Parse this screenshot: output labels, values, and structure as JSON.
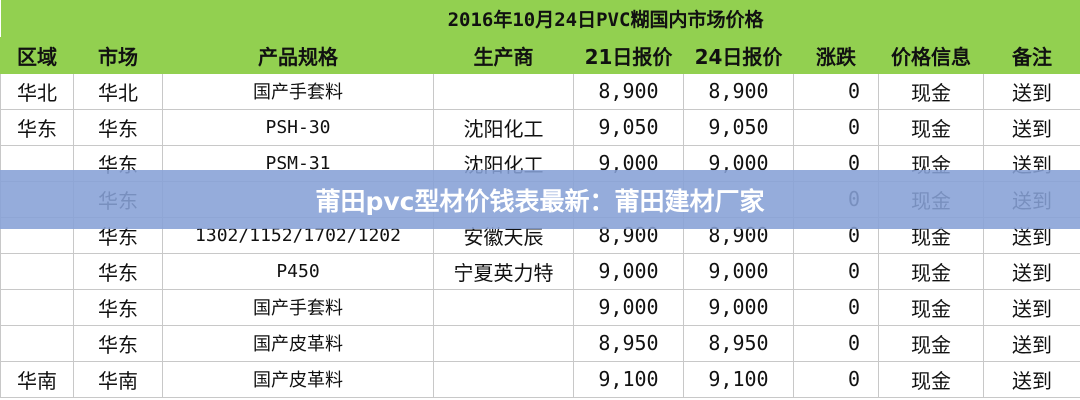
{
  "title": "2016年10月24日PVC糊国内市场价格",
  "headers": [
    "区域",
    "市场",
    "产品规格",
    "生产商",
    "21日报价",
    "24日报价",
    "涨跌",
    "价格信息",
    "备注"
  ],
  "rows": [
    [
      "华北",
      "华北",
      "国产手套料",
      "",
      "8,900",
      "8,900",
      "0",
      "现金",
      "送到"
    ],
    [
      "华东",
      "华东",
      "PSH-30",
      "沈阳化工",
      "9,050",
      "9,050",
      "0",
      "现金",
      "送到"
    ],
    [
      "",
      "华东",
      "PSM-31",
      "沈阳化工",
      "9,000",
      "9,000",
      "0",
      "现金",
      "送到"
    ],
    [
      "",
      "华东",
      "",
      "",
      "",
      "",
      "0",
      "现金",
      "送到"
    ],
    [
      "",
      "华东",
      "1302/1152/1702/1202",
      "安徽天辰",
      "8,900",
      "8,900",
      "0",
      "现金",
      "送到"
    ],
    [
      "",
      "华东",
      "P450",
      "宁夏英力特",
      "9,000",
      "9,000",
      "0",
      "现金",
      "送到"
    ],
    [
      "",
      "华东",
      "国产手套料",
      "",
      "9,000",
      "9,000",
      "0",
      "现金",
      "送到"
    ],
    [
      "",
      "华东",
      "国产皮革料",
      "",
      "8,950",
      "8,950",
      "0",
      "现金",
      "送到"
    ],
    [
      "华南",
      "华南",
      "国产皮革料",
      "",
      "9,100",
      "9,100",
      "0",
      "现金",
      "送到"
    ]
  ],
  "banner": "莆田pvc型材价钱表最新：莆田建材厂家",
  "colors": {
    "header_bg": "#92d050",
    "banner_bg": "#86a0d6"
  }
}
